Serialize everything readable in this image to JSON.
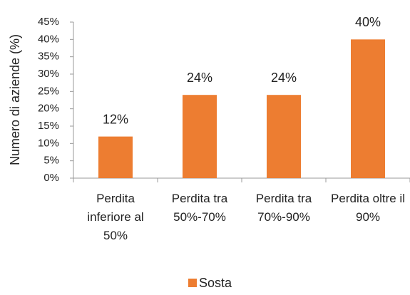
{
  "chart_data": {
    "type": "bar",
    "y_label": "Numero di aziende (%)",
    "categories": [
      "Perdita inferiore al 50%",
      "Perdita tra 50%-70%",
      "Perdita tra 70%-90%",
      "Perdita oltre il 90%"
    ],
    "series": [
      {
        "name": "Sosta",
        "color": "#ed7d31",
        "values": [
          12,
          24,
          24,
          40
        ],
        "value_labels": [
          "12%",
          "24%",
          "24%",
          "40%"
        ]
      }
    ],
    "ylim": [
      0,
      45
    ],
    "yticks": [
      {
        "value": 0,
        "label": "0%"
      },
      {
        "value": 5,
        "label": "5%"
      },
      {
        "value": 10,
        "label": "10%"
      },
      {
        "value": 15,
        "label": "15%"
      },
      {
        "value": 20,
        "label": "20%"
      },
      {
        "value": 25,
        "label": "25%"
      },
      {
        "value": 30,
        "label": "30%"
      },
      {
        "value": 35,
        "label": "35%"
      },
      {
        "value": 40,
        "label": "40%"
      },
      {
        "value": 45,
        "label": "45%"
      }
    ],
    "grid": false,
    "legend": "bottom"
  }
}
